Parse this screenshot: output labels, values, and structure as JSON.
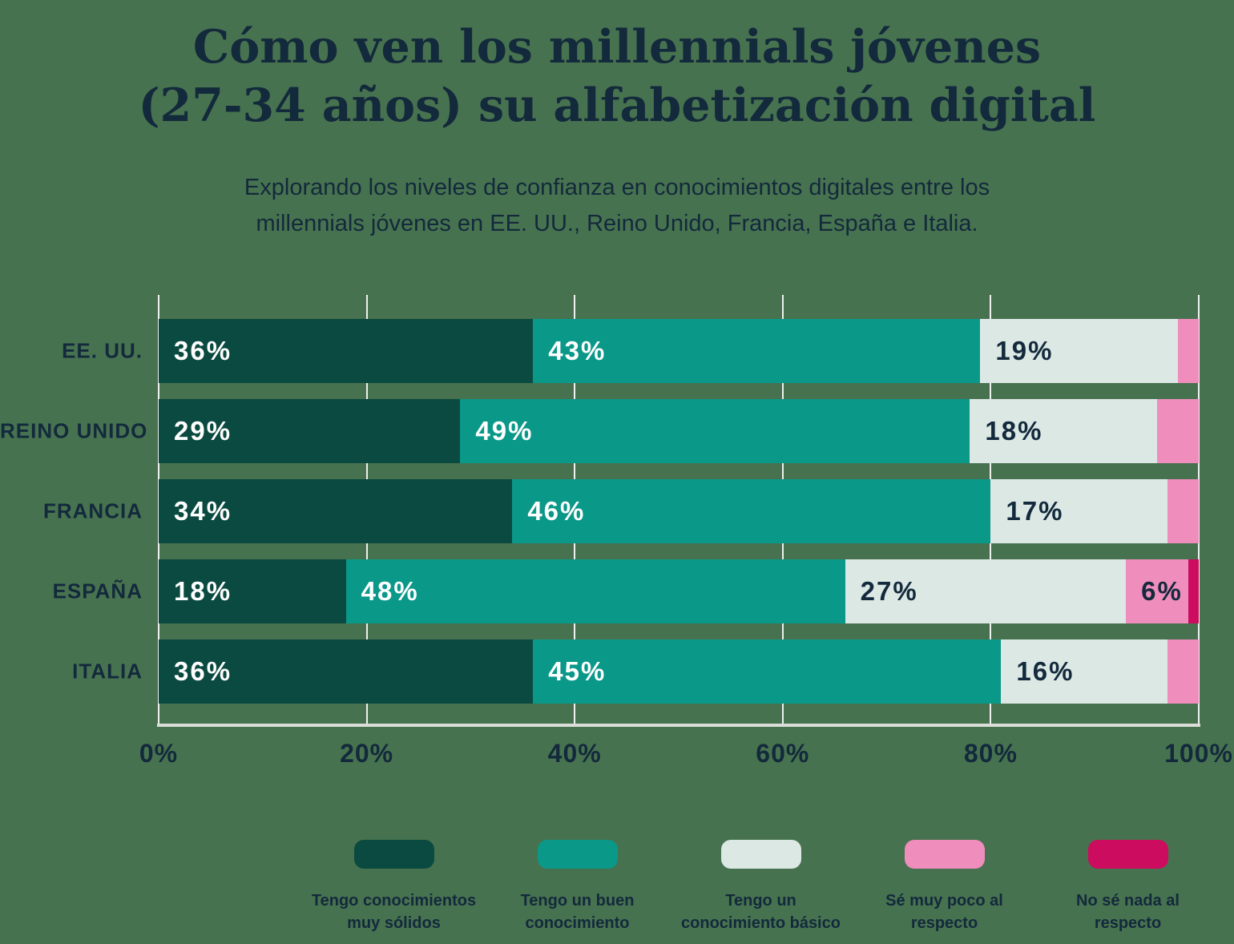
{
  "title": {
    "line1": "Cómo ven los millennials jóvenes",
    "line2": "(27-34 años) su alfabetización digital"
  },
  "subtitle": {
    "line1": "Explorando los niveles de confianza en conocimientos digitales entre los",
    "line2": "millennials jóvenes en EE. UU., Reino Unido, Francia, España e Italia."
  },
  "colors": {
    "background": "#47724F",
    "text_navy": "#13293C",
    "dark_teal": "#0B4A40",
    "teal": "#0A9889",
    "light_gray_green": "#DCE8E4",
    "pink": "#EF8DBC",
    "magenta": "#CC0C5F",
    "gridline": "#EEF1EE",
    "axis_line": "#D9DED8"
  },
  "chart_data": {
    "type": "bar",
    "stacked": true,
    "orientation": "horizontal",
    "title": "Cómo ven los millennials jóvenes (27-34 años) su alfabetización digital",
    "subtitle": "Explorando los niveles de confianza en conocimientos digitales entre los millennials jóvenes en EE. UU., Reino Unido, Francia, España e Italia.",
    "categories": [
      "EE. UU.",
      "REINO UNIDO",
      "FRANCIA",
      "ESPAÑA",
      "ITALIA"
    ],
    "series": [
      {
        "name": "Tengo conocimientos muy sólidos",
        "color": "#0B4A40",
        "label_color": "#FFFFFF",
        "values": [
          36,
          29,
          34,
          18,
          36
        ]
      },
      {
        "name": "Tengo un buen conocimiento",
        "color": "#0A9889",
        "label_color": "#FFFFFF",
        "values": [
          43,
          49,
          46,
          48,
          45
        ]
      },
      {
        "name": "Tengo un conocimiento básico",
        "color": "#DCE8E4",
        "label_color": "#13293C",
        "values": [
          19,
          18,
          17,
          27,
          16
        ]
      },
      {
        "name": "Sé muy poco al respecto",
        "color": "#EF8DBC",
        "label_color": "#13293C",
        "values": [
          2,
          4,
          3,
          6,
          3
        ]
      },
      {
        "name": "No sé nada al respecto",
        "color": "#CC0C5F",
        "label_color": "#13293C",
        "values": [
          0,
          0,
          0,
          1,
          0
        ]
      }
    ],
    "x_ticks": [
      "0%",
      "20%",
      "40%",
      "60%",
      "80%",
      "100%"
    ],
    "xlim": [
      0,
      100
    ],
    "grid": true,
    "value_label_suffix": "%",
    "label_min_value": 6,
    "legend_position": "bottom"
  },
  "legend": {
    "items": [
      {
        "line1": "Tengo conocimientos",
        "line2": "muy sólidos",
        "color": "#0B4A40"
      },
      {
        "line1": "Tengo un buen",
        "line2": "conocimiento",
        "color": "#0A9889"
      },
      {
        "line1": "Tengo un",
        "line2": "conocimiento básico",
        "color": "#DCE8E4"
      },
      {
        "line1": "Sé muy poco al",
        "line2": "respecto",
        "color": "#EF8DBC"
      },
      {
        "line1": "No sé nada al",
        "line2": "respecto",
        "color": "#CC0C5F"
      }
    ]
  }
}
